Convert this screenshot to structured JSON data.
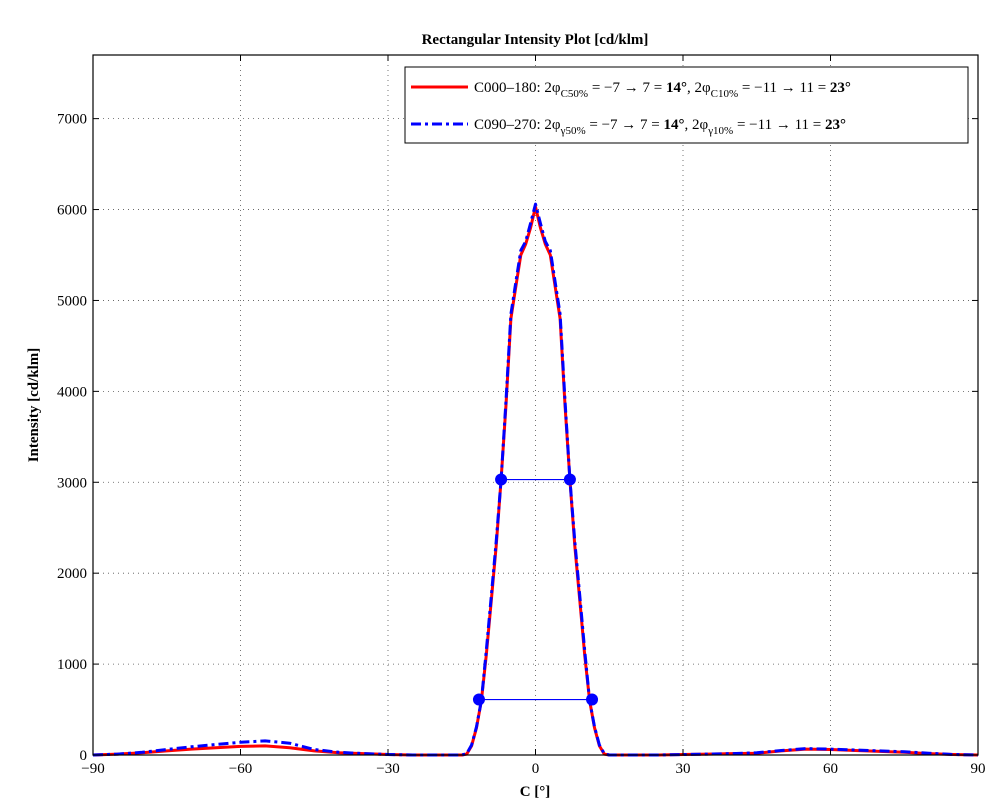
{
  "chart_data": {
    "type": "line",
    "title": "Rectangular Intensity Plot [cd/klm]",
    "xlabel": "C [°]",
    "ylabel": "Intensity [cd/klm]",
    "xlim": [
      -90,
      90
    ],
    "ylim": [
      0,
      7700
    ],
    "xticks": [
      -90,
      -60,
      -30,
      0,
      30,
      60,
      90
    ],
    "xtick_labels": [
      "−90",
      "−60",
      "−30",
      "0",
      "30",
      "60",
      "90"
    ],
    "yticks": [
      0,
      1000,
      2000,
      3000,
      4000,
      5000,
      6000,
      7000
    ],
    "ytick_labels": [
      "0",
      "1000",
      "2000",
      "3000",
      "4000",
      "5000",
      "6000",
      "7000"
    ],
    "grid": true,
    "legend_position": "top-right",
    "colors": {
      "series1": "#ff0000",
      "series2": "#0000ff",
      "markers": "#0000ff"
    },
    "series": [
      {
        "name": "C000–180",
        "legend": {
          "prefix": "C000–180: 2φ",
          "sub1": "C50%",
          "mid1": " = −7 → 7 = ",
          "bold1": "14°",
          "sep": ", 2φ",
          "sub2": "C10%",
          "mid2": " = −11 → 11 = ",
          "bold2": "23°"
        },
        "x": [
          -90,
          -85,
          -80,
          -75,
          -70,
          -65,
          -60,
          -55,
          -50,
          -45,
          -40,
          -35,
          -30,
          -25,
          -20,
          -17,
          -15,
          -14,
          -13,
          -12,
          -11,
          -10,
          -9,
          -8,
          -7,
          -6,
          -5,
          -4,
          -3,
          -2,
          -1,
          0,
          1,
          2,
          3,
          4,
          5,
          6,
          7,
          8,
          9,
          10,
          11,
          12,
          13,
          14,
          15,
          17,
          20,
          25,
          30,
          35,
          40,
          45,
          50,
          55,
          60,
          65,
          70,
          75,
          80,
          85,
          90
        ],
        "y": [
          0,
          10,
          25,
          45,
          65,
          80,
          95,
          100,
          80,
          45,
          25,
          15,
          5,
          0,
          0,
          0,
          0,
          10,
          100,
          300,
          600,
          1100,
          1700,
          2300,
          3030,
          3850,
          4800,
          5150,
          5500,
          5620,
          5800,
          6030,
          5800,
          5620,
          5500,
          5150,
          4800,
          3850,
          3030,
          2300,
          1700,
          1100,
          600,
          300,
          100,
          10,
          0,
          0,
          0,
          0,
          5,
          10,
          15,
          20,
          45,
          65,
          60,
          50,
          40,
          30,
          15,
          5,
          0
        ]
      },
      {
        "name": "C090–270",
        "legend": {
          "prefix": "C090–270: 2φ",
          "sub1": "γ50%",
          "mid1": " = −7 → 7 = ",
          "bold1": "14°",
          "sep": ", 2φ",
          "sub2": "γ10%",
          "mid2": " = −11 → 11 = ",
          "bold2": "23°"
        },
        "x": [
          -90,
          -85,
          -80,
          -75,
          -70,
          -65,
          -60,
          -55,
          -50,
          -45,
          -40,
          -35,
          -30,
          -25,
          -20,
          -17,
          -15,
          -14,
          -13,
          -12,
          -11,
          -10,
          -9,
          -8,
          -7,
          -6,
          -5,
          -4,
          -3,
          -2,
          -1,
          0,
          1,
          2,
          3,
          4,
          5,
          6,
          7,
          8,
          9,
          10,
          11,
          12,
          13,
          14,
          15,
          17,
          20,
          25,
          30,
          35,
          40,
          45,
          50,
          55,
          60,
          65,
          70,
          75,
          80,
          85,
          90
        ],
        "y": [
          0,
          10,
          30,
          60,
          90,
          115,
          140,
          155,
          130,
          60,
          30,
          15,
          5,
          0,
          0,
          0,
          0,
          15,
          110,
          310,
          600,
          1150,
          1750,
          2350,
          3030,
          3900,
          4850,
          5200,
          5550,
          5650,
          5850,
          6060,
          5850,
          5650,
          5550,
          5200,
          4850,
          3900,
          3030,
          2350,
          1750,
          1150,
          600,
          310,
          110,
          15,
          0,
          0,
          0,
          0,
          5,
          10,
          15,
          25,
          50,
          70,
          65,
          55,
          45,
          35,
          20,
          5,
          0
        ]
      }
    ],
    "markers": [
      {
        "x": [
          -7,
          7
        ],
        "y": [
          3030,
          3030
        ]
      },
      {
        "x": [
          -11.5,
          11.5
        ],
        "y": [
          610,
          610
        ]
      }
    ]
  }
}
